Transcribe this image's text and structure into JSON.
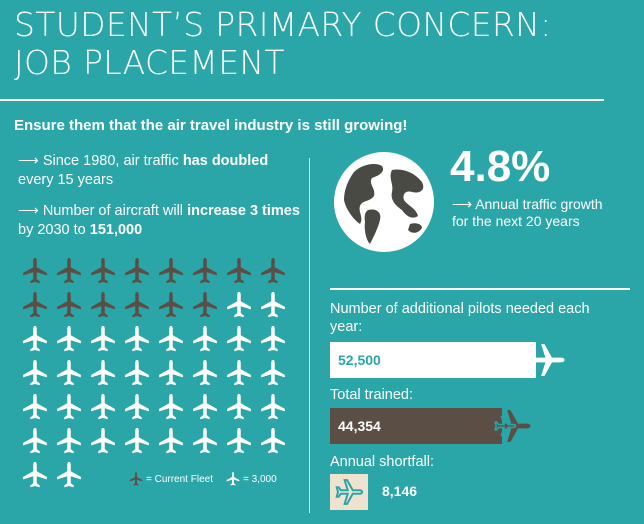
{
  "title": {
    "line1": "STUDENT’S PRIMARY CONCERN:",
    "line2": "JOB PLACEMENT"
  },
  "subtitle": "Ensure them that the air travel industry is still growing!",
  "facts": {
    "fact1": {
      "arrow": "⟶",
      "pre": "Since 1980, air traffic ",
      "bold": "has doubled",
      "post": " every 15 years"
    },
    "fact2": {
      "arrow": "⟶",
      "pre": "Number of aircraft will ",
      "bold": "increase 3 times",
      "mid": " by 2030 to ",
      "bold2": "151,000"
    }
  },
  "fleet_grid": {
    "rows": [
      [
        "dark",
        "dark",
        "dark",
        "dark",
        "dark",
        "dark",
        "dark",
        "dark"
      ],
      [
        "dark",
        "dark",
        "dark",
        "dark",
        "dark",
        "dark",
        "white",
        "white"
      ],
      [
        "white",
        "white",
        "white",
        "white",
        "white",
        "white",
        "white",
        "white"
      ],
      [
        "white",
        "white",
        "white",
        "white",
        "white",
        "white",
        "white",
        "white"
      ],
      [
        "white",
        "white",
        "white",
        "white",
        "white",
        "white",
        "white",
        "white"
      ],
      [
        "white",
        "white",
        "white",
        "white",
        "white",
        "white",
        "white",
        "white"
      ],
      [
        "white",
        "white"
      ]
    ],
    "colors": {
      "dark": "#5b4f45",
      "white": "#ffffff"
    }
  },
  "legend": {
    "current_fleet": "= Current Fleet",
    "unit": "= 3,000"
  },
  "growth": {
    "value": "4.8%",
    "text": "⟶ Annual traffic growth for the next 20 years"
  },
  "pilots": {
    "needed_label": "Number of additional pilots needed each year:",
    "needed_value": "52,500",
    "trained_label": "Total trained:",
    "trained_value": "44,354",
    "shortfall_label": "Annual shortfall:",
    "shortfall_value": "8,146"
  },
  "colors": {
    "background": "#2aa6a8",
    "dark": "#5b4f45",
    "cream": "#efe2cf",
    "globe_land": "#4a4a44"
  }
}
